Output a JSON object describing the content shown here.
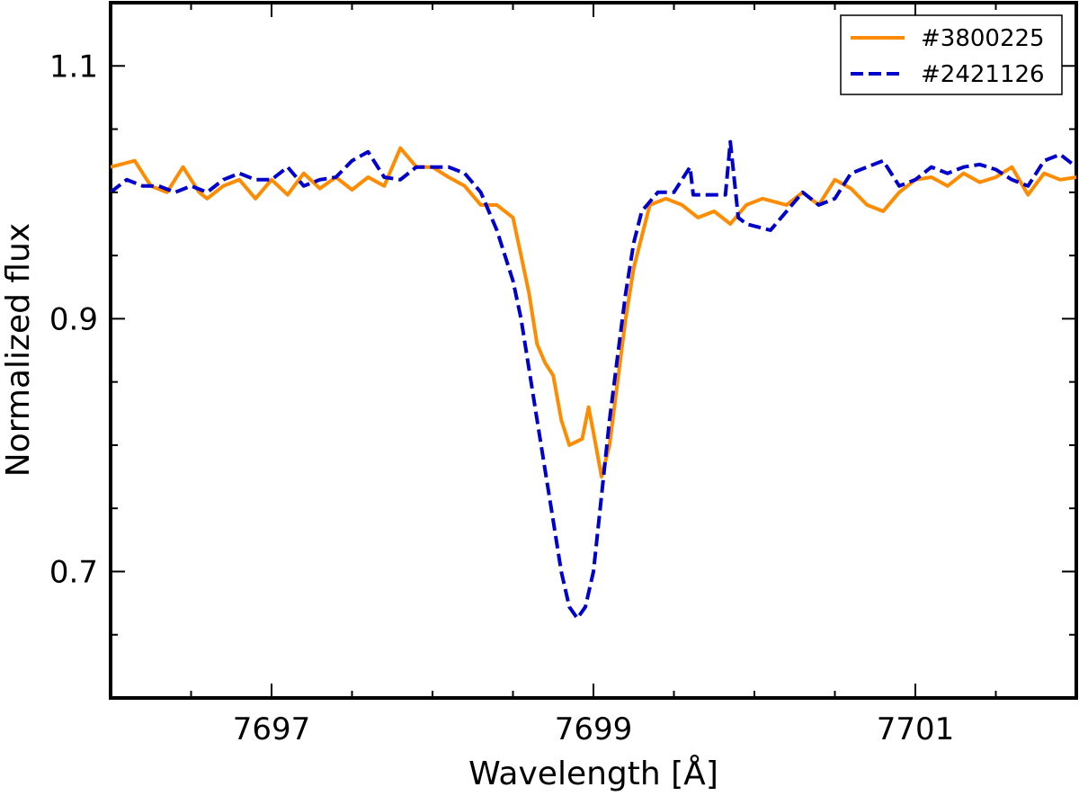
{
  "chart_data": {
    "type": "line",
    "title": "",
    "xlabel": "Wavelength [Å]",
    "ylabel": "Normalized flux",
    "xlim": [
      7696,
      7702
    ],
    "ylim": [
      0.6,
      1.15
    ],
    "grid": false,
    "legend_position": "top-right",
    "x_ticks_major": [
      7697,
      7699,
      7701
    ],
    "x_tick_labels": [
      "7697",
      "7699",
      "7701"
    ],
    "x_ticks_minor": [
      7696.5,
      7697.5,
      7698,
      7698.5,
      7699.5,
      7700,
      7700.5,
      7701.5
    ],
    "y_ticks_major": [
      0.7,
      0.9,
      1.1
    ],
    "y_tick_labels": [
      "0.7",
      "0.9",
      "1.1"
    ],
    "y_ticks_minor": [
      0.65,
      0.75,
      0.8,
      0.85,
      0.95,
      1.0,
      1.05
    ],
    "series": [
      {
        "name": "#3800225",
        "color": "#ff8c00",
        "style": "solid",
        "x": [
          7696.0,
          7696.15,
          7696.25,
          7696.35,
          7696.45,
          7696.55,
          7696.6,
          7696.7,
          7696.8,
          7696.9,
          7697.0,
          7697.1,
          7697.2,
          7697.3,
          7697.4,
          7697.5,
          7697.6,
          7697.7,
          7697.8,
          7697.9,
          7698.0,
          7698.1,
          7698.2,
          7698.3,
          7698.4,
          7698.5,
          7698.55,
          7698.6,
          7698.65,
          7698.7,
          7698.75,
          7698.8,
          7698.85,
          7698.93,
          7698.97,
          7699.0,
          7699.05,
          7699.1,
          7699.15,
          7699.2,
          7699.25,
          7699.3,
          7699.35,
          7699.45,
          7699.55,
          7699.65,
          7699.75,
          7699.85,
          7699.95,
          7700.05,
          7700.2,
          7700.3,
          7700.4,
          7700.5,
          7700.6,
          7700.7,
          7700.8,
          7700.9,
          7701.0,
          7701.1,
          7701.2,
          7701.3,
          7701.4,
          7701.5,
          7701.6,
          7701.7,
          7701.8,
          7701.9,
          7702.0
        ],
        "y": [
          1.02,
          1.025,
          1.005,
          1.0,
          1.02,
          1.0,
          0.995,
          1.005,
          1.01,
          0.995,
          1.01,
          0.998,
          1.015,
          1.003,
          1.012,
          1.002,
          1.012,
          1.005,
          1.035,
          1.02,
          1.02,
          1.012,
          1.005,
          0.99,
          0.99,
          0.98,
          0.95,
          0.92,
          0.88,
          0.865,
          0.855,
          0.82,
          0.8,
          0.805,
          0.83,
          0.81,
          0.775,
          0.8,
          0.85,
          0.9,
          0.94,
          0.965,
          0.99,
          0.995,
          0.99,
          0.98,
          0.985,
          0.975,
          0.99,
          0.995,
          0.99,
          1.0,
          0.99,
          1.01,
          1.003,
          0.99,
          0.985,
          1.0,
          1.01,
          1.012,
          1.005,
          1.015,
          1.008,
          1.012,
          1.02,
          0.998,
          1.015,
          1.01,
          1.012
        ]
      },
      {
        "name": "#2421126",
        "color": "#0000cd",
        "style": "dashed",
        "x": [
          7696.0,
          7696.1,
          7696.2,
          7696.3,
          7696.4,
          7696.5,
          7696.6,
          7696.7,
          7696.8,
          7696.9,
          7697.0,
          7697.1,
          7697.2,
          7697.3,
          7697.4,
          7697.5,
          7697.6,
          7697.7,
          7697.8,
          7697.9,
          7698.0,
          7698.1,
          7698.2,
          7698.3,
          7698.4,
          7698.5,
          7698.55,
          7698.6,
          7698.65,
          7698.7,
          7698.75,
          7698.8,
          7698.85,
          7698.9,
          7698.95,
          7699.0,
          7699.05,
          7699.1,
          7699.15,
          7699.2,
          7699.25,
          7699.3,
          7699.4,
          7699.5,
          7699.6,
          7699.62,
          7699.7,
          7699.82,
          7699.85,
          7699.9,
          7699.95,
          7700.1,
          7700.2,
          7700.3,
          7700.4,
          7700.5,
          7700.6,
          7700.7,
          7700.8,
          7700.9,
          7701.0,
          7701.1,
          7701.2,
          7701.3,
          7701.4,
          7701.5,
          7701.6,
          7701.7,
          7701.8,
          7701.9,
          7702.0
        ],
        "y": [
          1.0,
          1.01,
          1.005,
          1.005,
          1.0,
          1.005,
          1.0,
          1.01,
          1.015,
          1.01,
          1.01,
          1.02,
          1.005,
          1.01,
          1.012,
          1.025,
          1.032,
          1.012,
          1.01,
          1.02,
          1.02,
          1.02,
          1.015,
          1.0,
          0.97,
          0.93,
          0.9,
          0.86,
          0.82,
          0.78,
          0.74,
          0.7,
          0.672,
          0.663,
          0.672,
          0.7,
          0.76,
          0.82,
          0.87,
          0.92,
          0.96,
          0.985,
          1.0,
          1.0,
          1.02,
          0.998,
          0.998,
          0.998,
          1.04,
          0.98,
          0.975,
          0.97,
          0.985,
          1.0,
          0.99,
          0.995,
          1.015,
          1.02,
          1.025,
          1.005,
          1.01,
          1.02,
          1.015,
          1.02,
          1.022,
          1.018,
          1.01,
          1.005,
          1.025,
          1.03,
          1.02
        ]
      }
    ]
  }
}
